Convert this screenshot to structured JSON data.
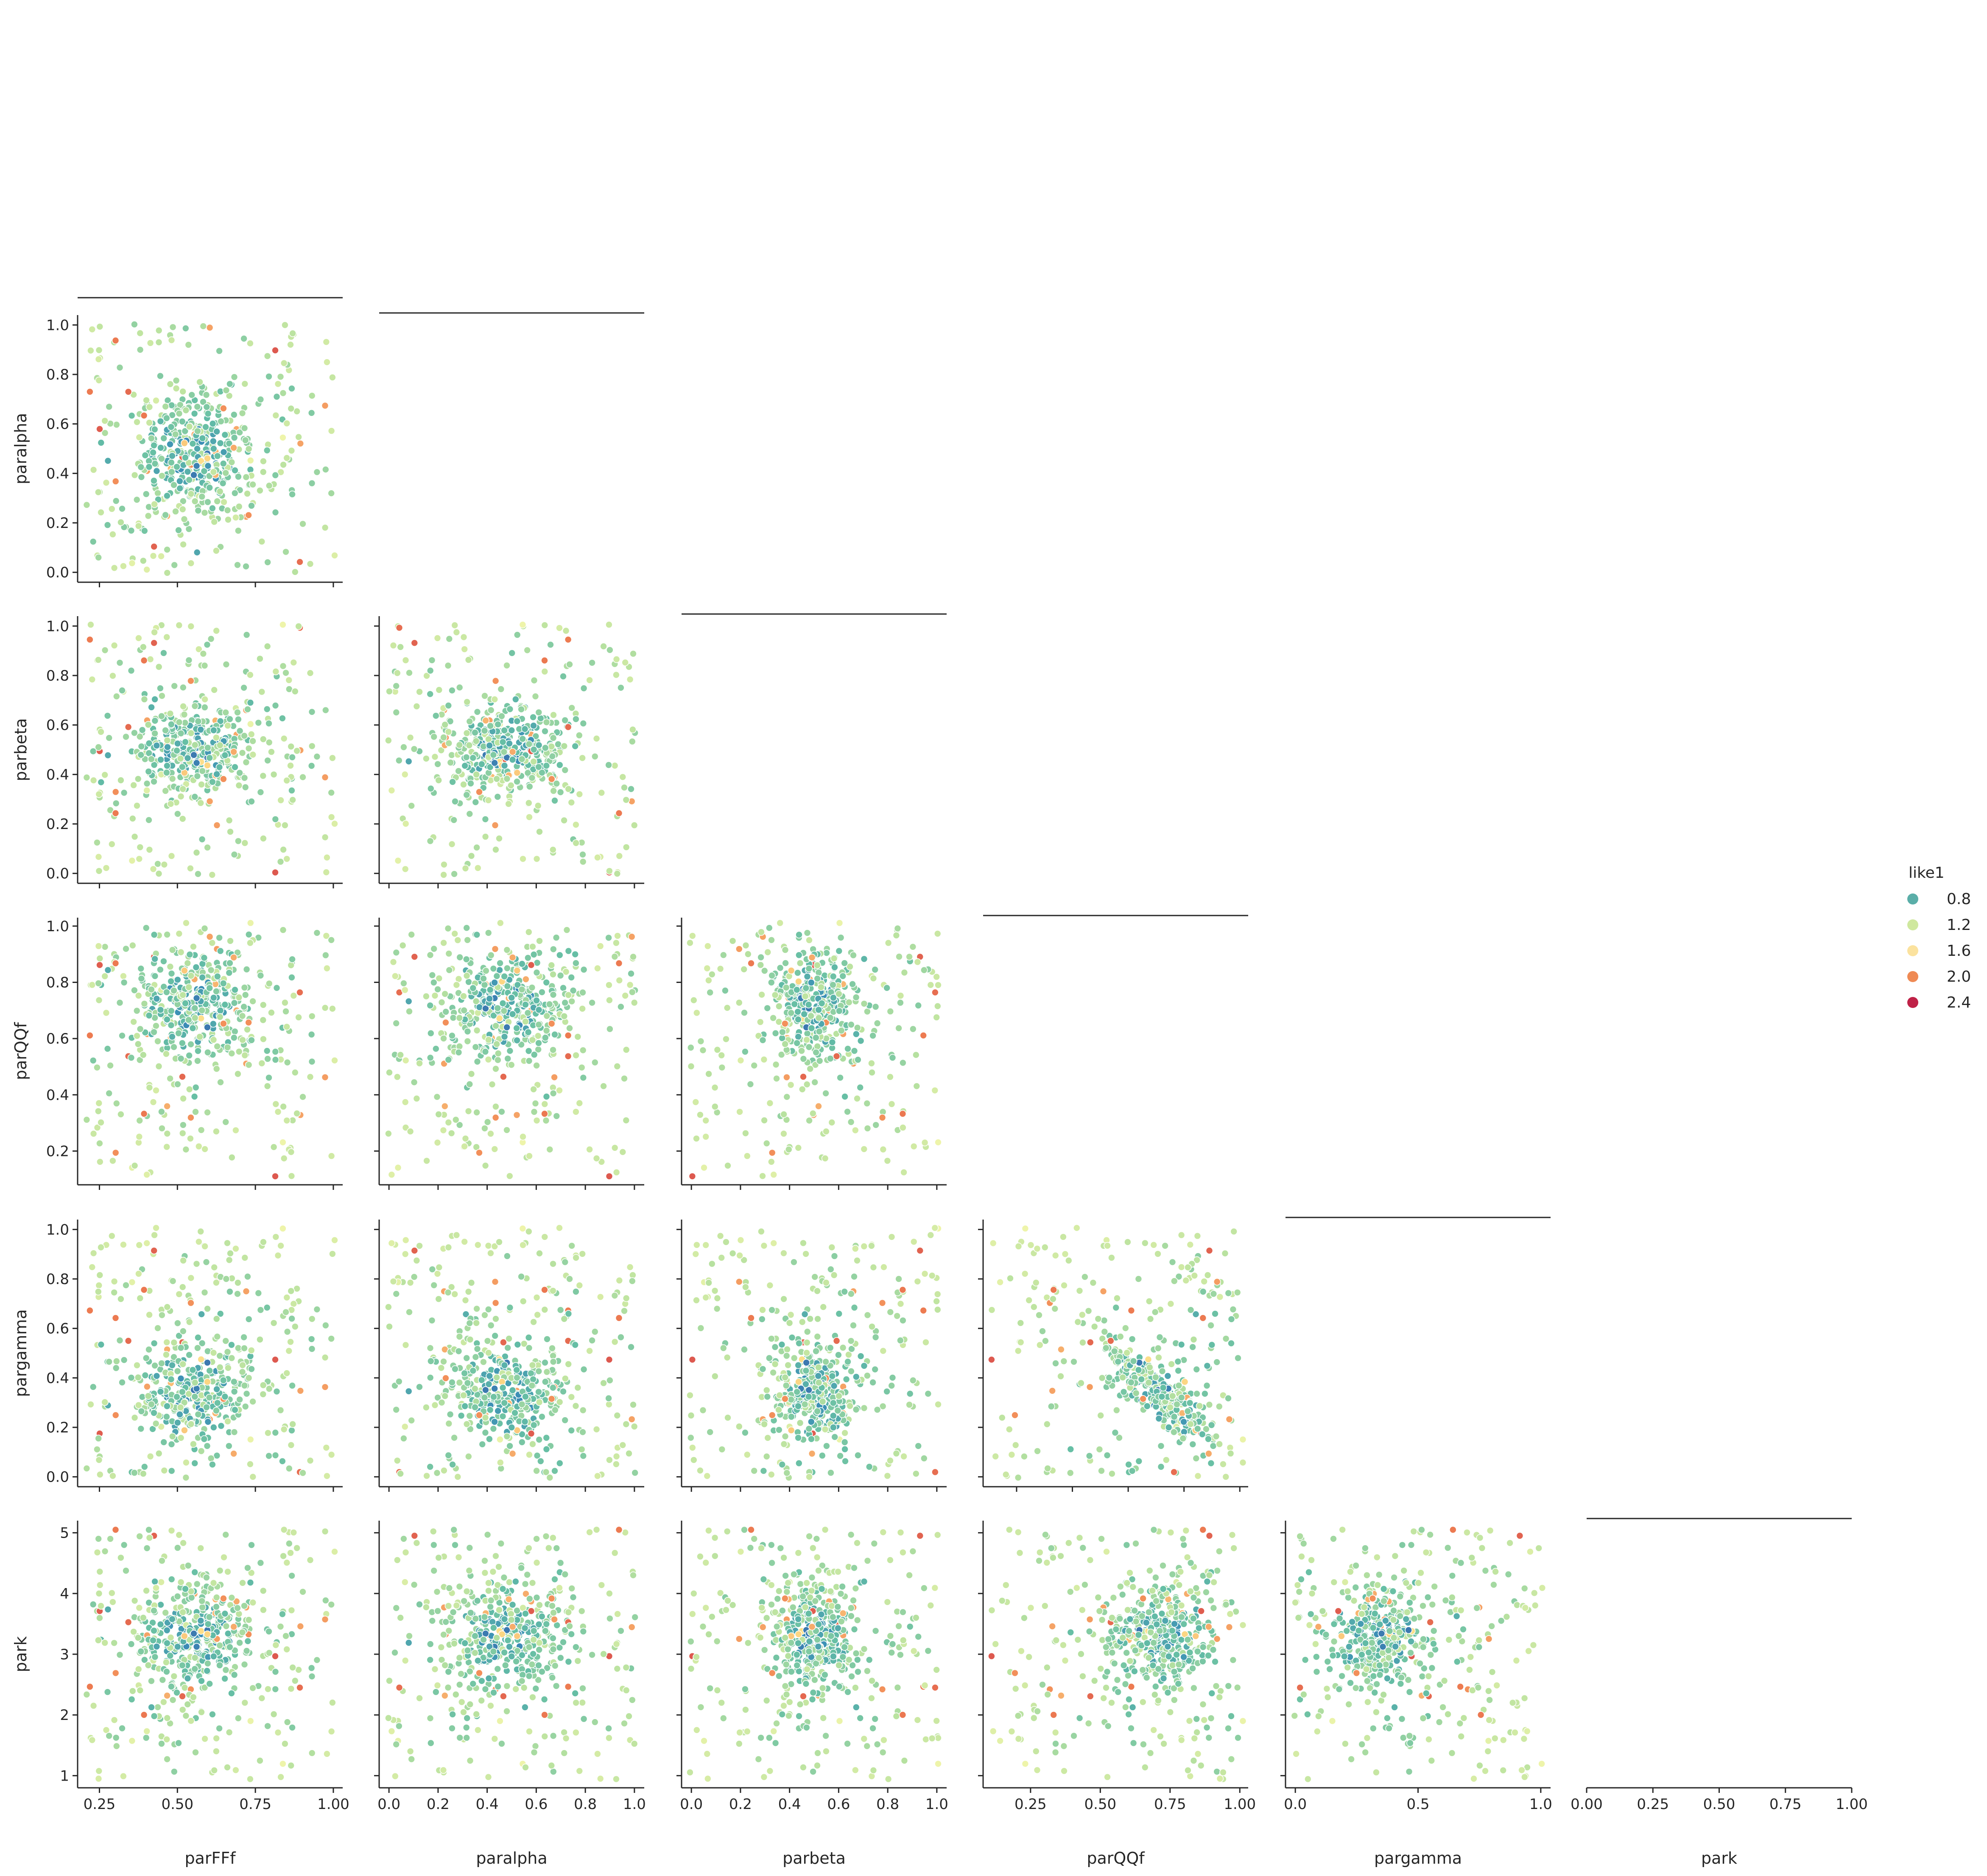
{
  "chart_data": {
    "type": "scatter",
    "layout": "pairplot-corner",
    "variables": [
      "parFFf",
      "paralpha",
      "parbeta",
      "parQQf",
      "pargamma",
      "park"
    ],
    "hue": {
      "name": "like1",
      "palette": "Spectral_r",
      "legend_values": [
        "0.8",
        "1.2",
        "1.6",
        "2.0",
        "2.4"
      ],
      "legend_colors": [
        "#5aaea8",
        "#cfe89e",
        "#fbe29e",
        "#ef8a54",
        "#bf2147"
      ],
      "legend_placement": "right-center"
    },
    "ticks": {
      "parFFf": [
        "0.25",
        "0.50",
        "0.75",
        "1.00"
      ],
      "paralpha": [
        "0.0",
        "0.2",
        "0.4",
        "0.6",
        "0.8",
        "1.0"
      ],
      "parbeta": [
        "0.0",
        "0.2",
        "0.4",
        "0.6",
        "0.8",
        "1.0"
      ],
      "parQQf": [
        "0.2",
        "0.4",
        "0.6",
        "0.8",
        "1.0"
      ],
      "pargamma": [
        "0.0",
        "0.2",
        "0.4",
        "0.6",
        "0.8",
        "1.0"
      ],
      "park": [
        "1",
        "2",
        "3",
        "4",
        "5"
      ]
    },
    "x_ticks_override": {
      "parQQf": [
        "0.25",
        "0.50",
        "0.75",
        "1.00"
      ],
      "pargamma": [
        "0.0",
        "0.5",
        "1.0"
      ],
      "park": [
        "0.00",
        "0.25",
        "0.50",
        "0.75",
        "1.00"
      ]
    },
    "ranges": {
      "parFFf": [
        0.18,
        1.03
      ],
      "paralpha": [
        -0.04,
        1.04
      ],
      "parbeta": [
        -0.04,
        1.04
      ],
      "parQQf": [
        0.08,
        1.03
      ],
      "pargamma": [
        -0.04,
        1.04
      ],
      "park": [
        0.8,
        5.2
      ]
    },
    "grid": false,
    "distributions": {
      "parFFf": {
        "mean": 0.55,
        "sd": 0.09
      },
      "paralpha": {
        "mean": 0.47,
        "sd": 0.12
      },
      "parbeta": {
        "mean": 0.5,
        "sd": 0.09
      },
      "parQQf": {
        "mean": 0.72,
        "sd": 0.1
      },
      "pargamma": {
        "mean": 0.33,
        "sd": 0.11
      },
      "park": {
        "mean": 3.25,
        "sd": 0.45
      }
    },
    "n_points": 540
  }
}
